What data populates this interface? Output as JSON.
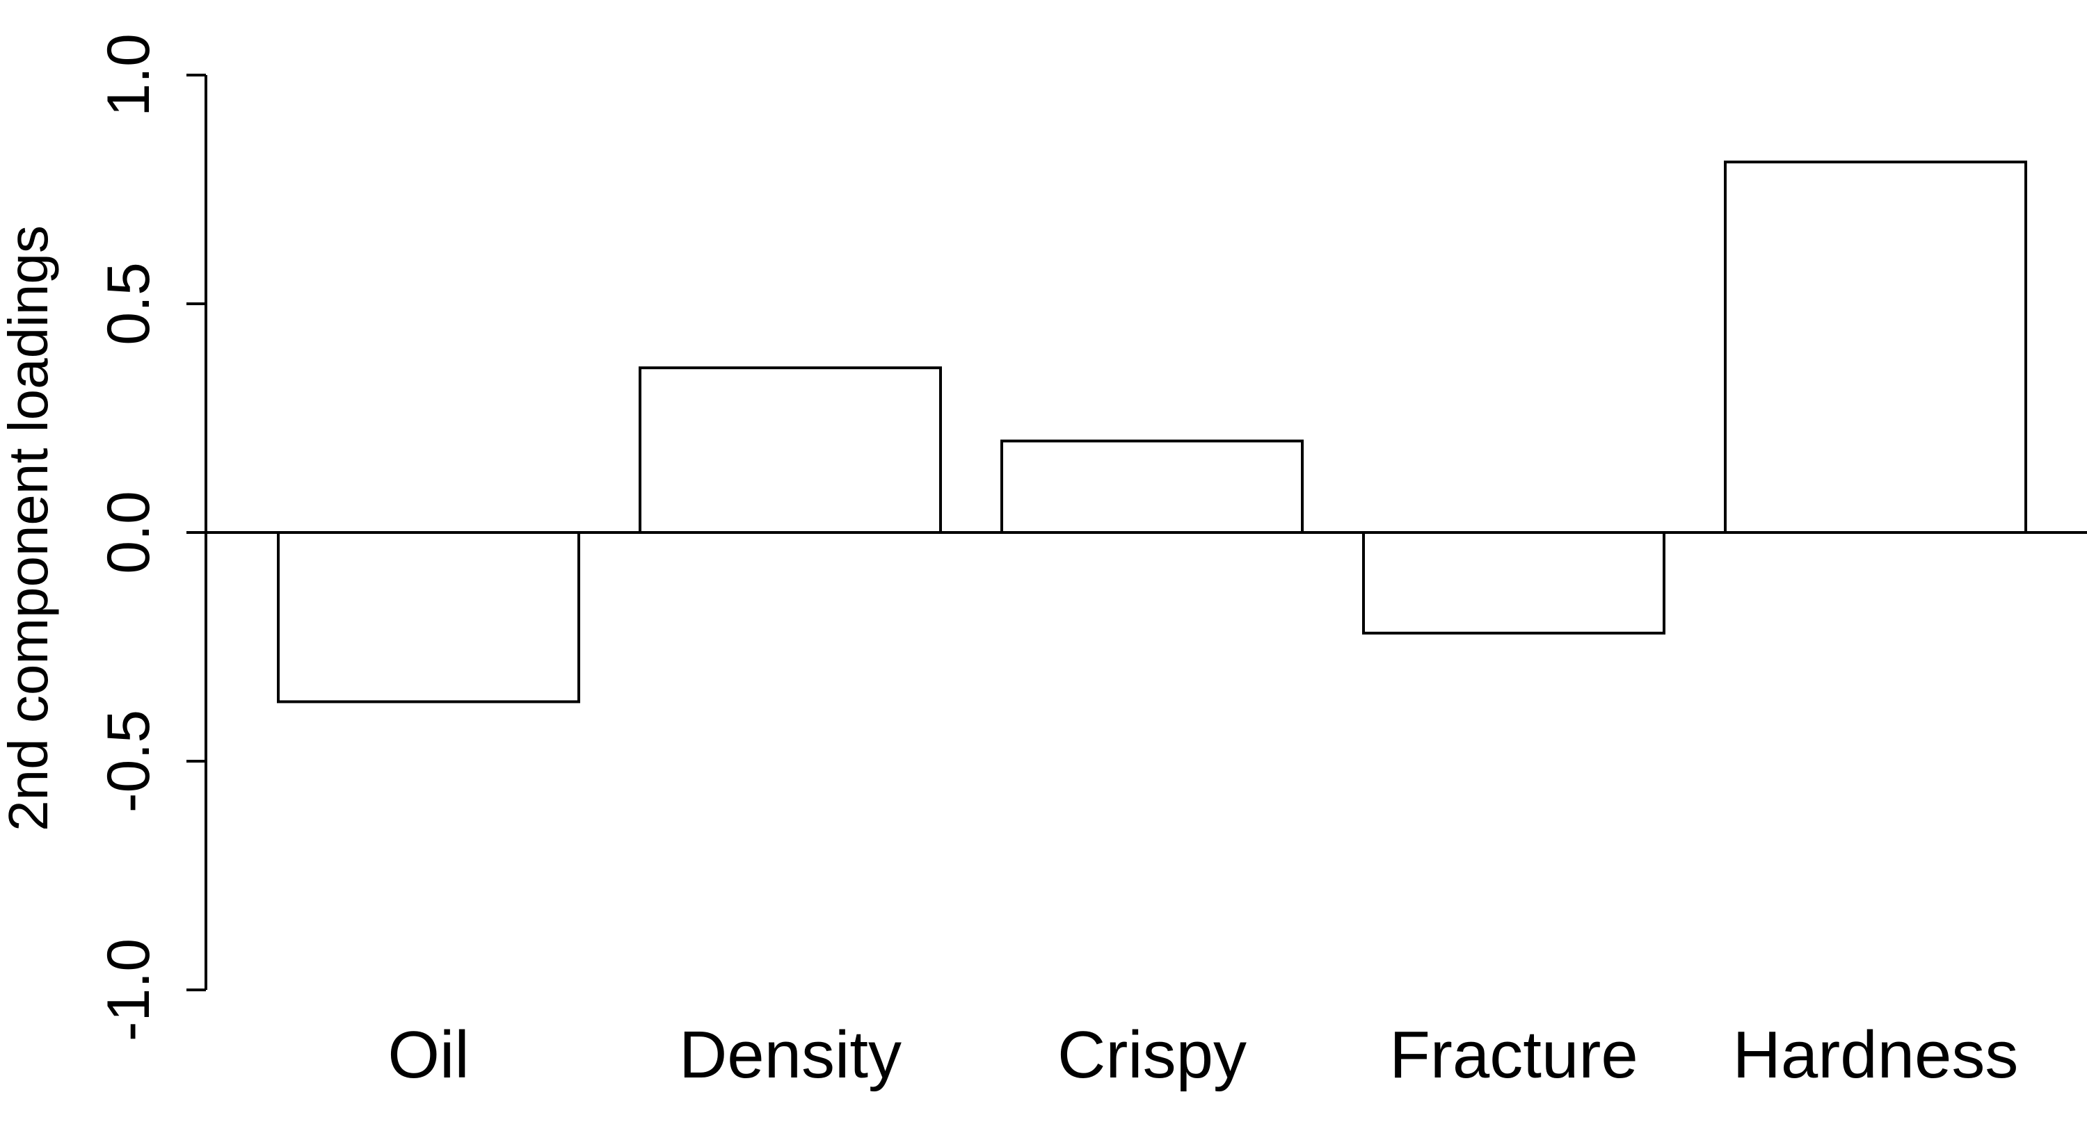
{
  "chart_data": {
    "type": "bar",
    "categories": [
      "Oil",
      "Density",
      "Crispy",
      "Fracture",
      "Hardness"
    ],
    "values": [
      -0.37,
      0.36,
      0.2,
      -0.22,
      0.81
    ],
    "xlabel": "",
    "ylabel": "2nd component loadings",
    "ylim": [
      -1.0,
      1.0
    ],
    "yticks": [
      "-1.0",
      "-0.5",
      "0.0",
      "0.5",
      "1.0"
    ],
    "ytick_values": [
      -1.0,
      -0.5,
      0.0,
      0.5,
      1.0
    ],
    "grid": false,
    "baseline": 0.0
  }
}
